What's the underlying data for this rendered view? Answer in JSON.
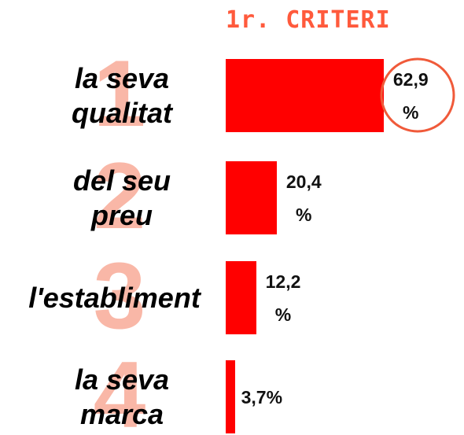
{
  "chart_data": {
    "type": "bar",
    "orientation": "horizontal",
    "title": "1r. CRITERI",
    "categories": [
      "la seva qualitat",
      "del seu preu",
      "l'establiment",
      "la seva marca"
    ],
    "rank_labels": [
      "1",
      "2",
      "3",
      "4"
    ],
    "values": [
      62.9,
      20.4,
      12.2,
      3.7
    ],
    "value_labels": [
      "62,9 %",
      "20,4 %",
      "12,2 %",
      "3,7%"
    ],
    "color": "#ff0000"
  }
}
